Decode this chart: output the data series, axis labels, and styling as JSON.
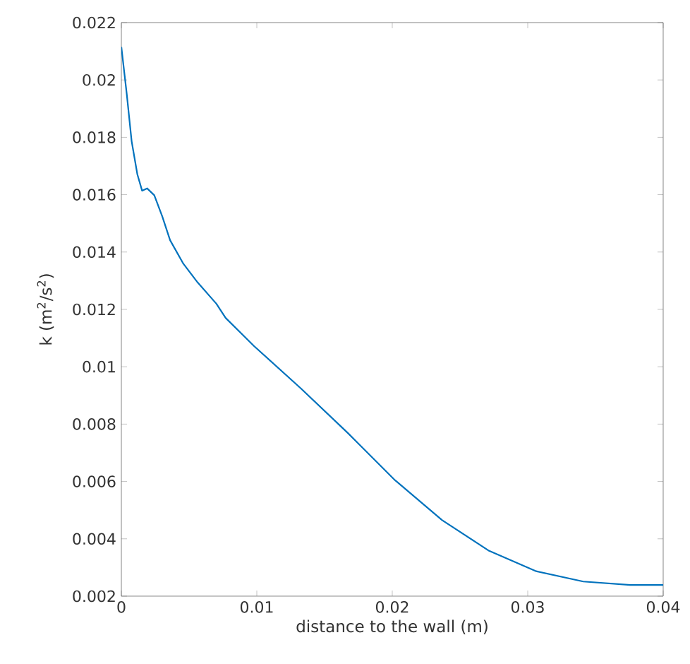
{
  "chart_data": {
    "type": "line",
    "xlabel": "distance to the wall (m)",
    "ylabel": "k (m$^{2}$/s$^{2}$)",
    "xlim": [
      0,
      0.04
    ],
    "xticks": [
      0,
      0.01,
      0.02,
      0.03,
      0.04
    ],
    "ylim": [
      0.002,
      0.022
    ],
    "yticks": [
      0.002,
      0.004,
      0.006,
      0.008,
      0.01,
      0.012,
      0.014,
      0.016,
      0.018,
      0.02,
      0.022
    ],
    "series": [
      {
        "color": "#0072bd",
        "x": [
          0,
          0.0004,
          0.00076,
          0.00118,
          0.00153,
          0.0019,
          0.00243,
          0.00302,
          0.0036,
          0.00458,
          0.00563,
          0.00701,
          0.0077,
          0.00909,
          0.0098,
          0.01326,
          0.01674,
          0.02021,
          0.02368,
          0.02715,
          0.03063,
          0.0341,
          0.03757,
          0.04
        ],
        "values": [
          0.02115,
          0.0195,
          0.01786,
          0.01671,
          0.01614,
          0.01622,
          0.01598,
          0.01524,
          0.01441,
          0.01359,
          0.01294,
          0.0122,
          0.0117,
          0.01105,
          0.01072,
          0.00924,
          0.00768,
          0.00604,
          0.00465,
          0.00358,
          0.00287,
          0.00251,
          0.00239,
          0.00239
        ]
      }
    ]
  }
}
